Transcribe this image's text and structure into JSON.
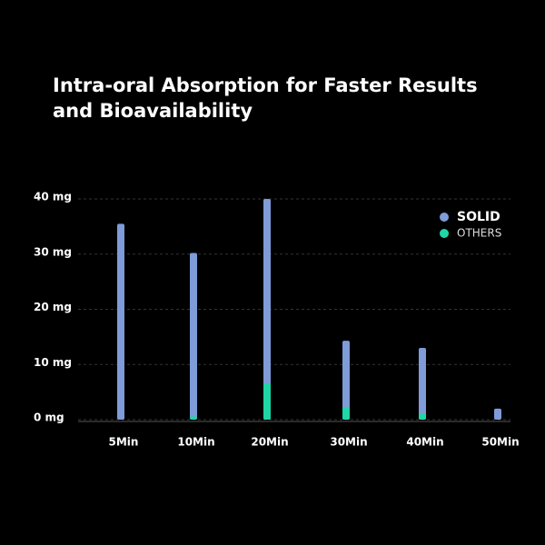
{
  "chart_data": {
    "type": "bar",
    "title": "Intra-oral Absorption for Faster Results and Bioavailability",
    "categories": [
      "5Min",
      "10Min",
      "20Min",
      "30Min",
      "40Min",
      "50Min"
    ],
    "series": [
      {
        "name": "SOLID",
        "color": "#7f9bd8",
        "values": [
          35.5,
          30.2,
          40,
          14.3,
          13,
          2
        ]
      },
      {
        "name": "OTHERS",
        "color": "#1fd6a6",
        "values": [
          0,
          0.6,
          6.6,
          2.3,
          1.1,
          0
        ]
      }
    ],
    "ylim": [
      0,
      40
    ],
    "yticks": [
      {
        "value": 0,
        "label": "0 mg"
      },
      {
        "value": 10,
        "label": "10 mg"
      },
      {
        "value": 20,
        "label": "20 mg"
      },
      {
        "value": 30,
        "label": "30 mg"
      },
      {
        "value": 40,
        "label": "40 mg"
      }
    ],
    "grid": true,
    "legend": "top-right"
  }
}
